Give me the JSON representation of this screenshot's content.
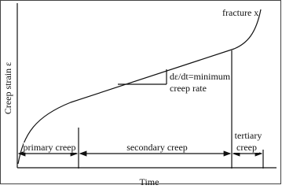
{
  "title": "",
  "y_axis_label": "Creep strain ε",
  "x_axis_label": "Time",
  "annotations": {
    "fracture": "fracture x",
    "slope_line1": "dε/dt=minimum",
    "slope_line2": "creep rate"
  },
  "stages": {
    "primary": "primary creep",
    "secondary": "secondary creep",
    "tertiary_line1": "tertiary",
    "tertiary_line2": "creep"
  }
}
